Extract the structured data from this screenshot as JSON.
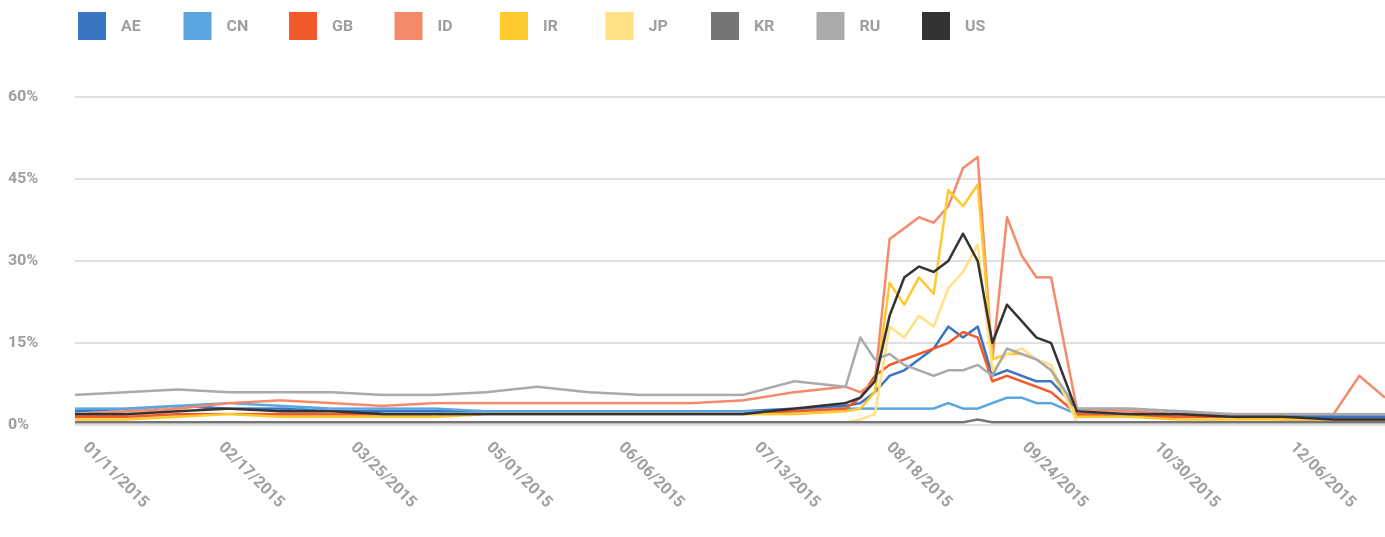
{
  "chart_data": {
    "type": "line",
    "x": [
      "01/06/2015",
      "01/20/2015",
      "02/03/2015",
      "02/17/2015",
      "03/03/2015",
      "03/17/2015",
      "03/31/2015",
      "04/14/2015",
      "04/28/2015",
      "05/12/2015",
      "05/26/2015",
      "06/09/2015",
      "06/23/2015",
      "07/07/2015",
      "07/21/2015",
      "08/04/2015",
      "08/08/2015",
      "08/12/2015",
      "08/16/2015",
      "08/20/2015",
      "08/24/2015",
      "08/28/2015",
      "09/01/2015",
      "09/05/2015",
      "09/09/2015",
      "09/13/2015",
      "09/17/2015",
      "09/21/2015",
      "09/25/2015",
      "09/29/2015",
      "10/06/2015",
      "10/20/2015",
      "11/03/2015",
      "11/17/2015",
      "12/01/2015",
      "12/15/2015",
      "12/22/2015",
      "12/29/2015"
    ],
    "xlim": [
      "01/06/2015",
      "12/29/2015"
    ],
    "xticks": [
      "01/11/2015",
      "02/17/2015",
      "03/25/2015",
      "05/01/2015",
      "06/06/2015",
      "07/13/2015",
      "08/18/2015",
      "09/24/2015",
      "10/30/2015",
      "12/06/2015"
    ],
    "ylim": [
      0,
      60
    ],
    "yticks": [
      {
        "value": 0,
        "label": "0%"
      },
      {
        "value": 15,
        "label": "15%"
      },
      {
        "value": 30,
        "label": "30%"
      },
      {
        "value": 45,
        "label": "45%"
      },
      {
        "value": 60,
        "label": "60%"
      }
    ],
    "grid": true,
    "legend": "top",
    "series": [
      {
        "name": "AE",
        "color": "#3a75c4",
        "values": [
          2.5,
          3,
          3.5,
          3,
          3,
          2.5,
          2.5,
          2.5,
          2.5,
          2.5,
          2.5,
          2.5,
          2.5,
          2.5,
          3,
          3.5,
          4,
          6,
          9,
          10,
          12,
          14,
          18,
          16,
          18,
          9,
          10,
          9,
          8,
          8,
          3,
          3,
          2.5,
          2,
          1.5,
          1.5,
          1.5,
          1.5
        ]
      },
      {
        "name": "CN",
        "color": "#5aa6e0",
        "values": [
          3,
          3,
          3.5,
          4,
          3.5,
          3,
          3,
          3,
          2.5,
          2.5,
          2.5,
          2.5,
          2.5,
          2.5,
          2.5,
          3,
          3,
          3,
          3,
          3,
          3,
          3,
          4,
          3,
          3,
          4,
          5,
          5,
          4,
          4,
          2,
          2,
          1.5,
          1.5,
          1,
          1,
          1,
          1
        ]
      },
      {
        "name": "GB",
        "color": "#f4592b",
        "values": [
          1.5,
          1.5,
          2,
          2,
          2,
          2,
          2,
          1.5,
          2,
          2,
          2,
          2,
          2,
          2,
          2.5,
          3,
          5,
          9,
          11,
          12,
          13,
          14,
          15,
          17,
          16,
          8,
          9,
          8,
          7,
          6,
          2,
          1.5,
          1.5,
          1.5,
          1,
          1,
          1,
          1
        ]
      },
      {
        "name": "ID",
        "color": "#f58a6b",
        "values": [
          2,
          2.5,
          3,
          4,
          4.5,
          4,
          3.5,
          4,
          4,
          4,
          4,
          4,
          4,
          4.5,
          6,
          7,
          6,
          8,
          34,
          36,
          38,
          37,
          40,
          47,
          49,
          12,
          38,
          31,
          27,
          27,
          3,
          2.5,
          2,
          2,
          2,
          2,
          9,
          5
        ]
      },
      {
        "name": "IR",
        "color": "#fdc92c",
        "values": [
          1,
          1,
          1.5,
          2,
          1.5,
          1.5,
          1.5,
          1.5,
          2,
          2,
          2,
          2,
          2,
          2,
          2,
          2.5,
          3,
          6,
          26,
          22,
          27,
          24,
          43,
          40,
          44,
          12,
          13,
          13,
          12,
          10,
          1.5,
          1.5,
          1,
          1,
          1,
          1,
          1,
          1
        ]
      },
      {
        "name": "JP",
        "color": "#ffe085",
        "values": [
          0.5,
          0.5,
          0.5,
          0.5,
          0.5,
          0.5,
          0.5,
          0.5,
          0.5,
          0.5,
          0.5,
          0.5,
          0.5,
          0.5,
          0.5,
          0.5,
          1,
          2,
          18,
          16,
          20,
          18,
          25,
          28,
          33,
          10,
          13,
          14,
          12,
          11,
          0.5,
          0.5,
          0.5,
          0.5,
          0.5,
          0.5,
          0.5,
          0.5
        ]
      },
      {
        "name": "KR",
        "color": "#757575",
        "values": [
          0.5,
          0.5,
          0.5,
          0.5,
          0.5,
          0.5,
          0.5,
          0.5,
          0.5,
          0.5,
          0.5,
          0.5,
          0.5,
          0.5,
          0.5,
          0.5,
          0.5,
          0.5,
          0.5,
          0.5,
          0.5,
          0.5,
          0.5,
          0.5,
          1,
          0.5,
          0.5,
          0.5,
          0.5,
          0.5,
          0.5,
          0.5,
          0.5,
          0.5,
          0.5,
          0.5,
          0.5,
          0.5
        ]
      },
      {
        "name": "RU",
        "color": "#aaaaaa",
        "values": [
          5.5,
          6,
          6.5,
          6,
          6,
          6,
          5.5,
          5.5,
          6,
          7,
          6,
          5.5,
          5.5,
          5.5,
          8,
          7,
          16,
          12,
          13,
          11,
          10,
          9,
          10,
          10,
          11,
          9,
          14,
          13,
          12,
          10,
          3,
          3,
          2.5,
          2,
          2,
          2,
          2,
          2
        ]
      },
      {
        "name": "US",
        "color": "#333333",
        "values": [
          2,
          2,
          2.5,
          3,
          2.5,
          2.5,
          2,
          2,
          2,
          2,
          2,
          2,
          2,
          2,
          3,
          4,
          5,
          8,
          20,
          27,
          29,
          28,
          30,
          35,
          30,
          15,
          22,
          19,
          16,
          15,
          2.5,
          2,
          2,
          1.5,
          1.5,
          1,
          1,
          1
        ]
      }
    ]
  }
}
